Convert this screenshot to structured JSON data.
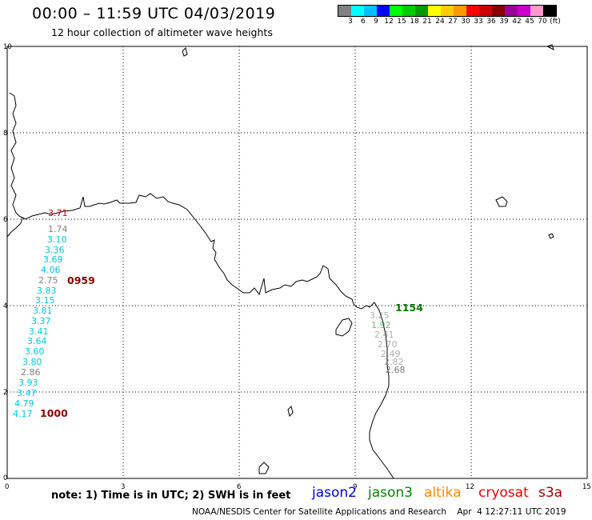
{
  "header": {
    "title": "00:00 – 11:59 UTC 04/03/2019",
    "subtitle": "12 hour collection of altimeter wave heights"
  },
  "scale": {
    "colors": [
      "#808080",
      "#00ffff",
      "#00c0ff",
      "#0000ff",
      "#00ff00",
      "#00cc00",
      "#009900",
      "#ffff00",
      "#ffcc00",
      "#ff9900",
      "#ff0000",
      "#cc0000",
      "#880000",
      "#990099",
      "#cc00cc",
      "#ff99cc",
      "#000000"
    ],
    "labels": [
      "3",
      "6",
      "9",
      "12",
      "15",
      "18",
      "21",
      "24",
      "27",
      "30",
      "33",
      "36",
      "39",
      "42",
      "45",
      "70",
      "(ft)"
    ]
  },
  "axes": {
    "x_ticks": [
      "0",
      "3",
      "6",
      "9",
      "12",
      "15"
    ],
    "y_ticks": [
      "0",
      "2",
      "4",
      "6",
      "8",
      "10"
    ]
  },
  "passes": [
    {
      "time": "0959",
      "color": "#8b0000"
    },
    {
      "time": "1000",
      "color": "#8b0000"
    },
    {
      "time": "1154",
      "color": "#007a00"
    }
  ],
  "swh_track_1": [
    {
      "v": "3.71",
      "color": "#cc0000"
    },
    {
      "v": "1.74",
      "color": "#808080"
    },
    {
      "v": "3.10",
      "color": "#00c8d8"
    },
    {
      "v": "3.36",
      "color": "#00c8d8"
    },
    {
      "v": "3.69",
      "color": "#00c8d8"
    },
    {
      "v": "4.06",
      "color": "#00c8d8"
    },
    {
      "v": "2.75",
      "color": "#808080"
    },
    {
      "v": "3.83",
      "color": "#00c8d8"
    },
    {
      "v": "3.15",
      "color": "#00c8d8"
    },
    {
      "v": "3.81",
      "color": "#00c8d8"
    },
    {
      "v": "3.37",
      "color": "#00c8d8"
    },
    {
      "v": "3.41",
      "color": "#00c8d8"
    },
    {
      "v": "3.64",
      "color": "#00c8d8"
    },
    {
      "v": "3.60",
      "color": "#00c8d8"
    },
    {
      "v": "3.80",
      "color": "#00c8d8"
    },
    {
      "v": "2.86",
      "color": "#808080"
    },
    {
      "v": "3.93",
      "color": "#00c8d8"
    },
    {
      "v": "3.47",
      "color": "#00c8d8"
    },
    {
      "v": "4.79",
      "color": "#00c8d8"
    },
    {
      "v": "4.17",
      "color": "#00c8d8"
    }
  ],
  "swh_track_2": [
    {
      "v": "2.68",
      "color": "#808080"
    }
  ],
  "legend": {
    "note": "note: 1) Time is in UTC; 2) SWH is in feet",
    "satellites": [
      {
        "name": "jason2",
        "color": "#0000ee"
      },
      {
        "name": "jason3",
        "color": "#008800"
      },
      {
        "name": "altika",
        "color": "#ff8800"
      },
      {
        "name": "cryosat",
        "color": "#ee0000"
      },
      {
        "name": "s3a",
        "color": "#aa0000"
      }
    ]
  },
  "footer": {
    "credit": "NOAA/NESDIS Center for Satellite Applications and Research    Apr  4 12:27:11 UTC 2019"
  }
}
